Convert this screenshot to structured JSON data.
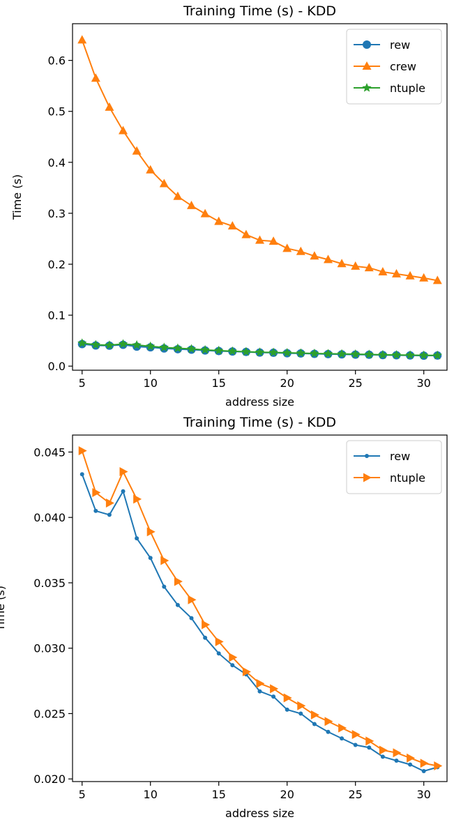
{
  "chart_data": [
    {
      "type": "line",
      "title": "Training Time (s) - KDD",
      "xlabel": "address size",
      "ylabel": "Time (s)",
      "xlim": [
        4.3,
        31.7
      ],
      "ylim": [
        -0.008,
        0.672
      ],
      "xticks": [
        5,
        10,
        15,
        20,
        25,
        30
      ],
      "yticks": [
        0.0,
        0.1,
        0.2,
        0.3,
        0.4,
        0.5,
        0.6
      ],
      "ytick_labels": [
        "0.0",
        "0.1",
        "0.2",
        "0.3",
        "0.4",
        "0.5",
        "0.6"
      ],
      "grid": false,
      "legend_position": "top-right",
      "x": [
        5,
        6,
        7,
        8,
        9,
        10,
        11,
        12,
        13,
        14,
        15,
        16,
        17,
        18,
        19,
        20,
        21,
        22,
        23,
        24,
        25,
        26,
        27,
        28,
        29,
        30,
        31
      ],
      "series": [
        {
          "name": "rew",
          "color": "#1f77b4",
          "marker": "circle",
          "values": [
            0.0433,
            0.0405,
            0.0402,
            0.042,
            0.0384,
            0.0369,
            0.0347,
            0.0333,
            0.0323,
            0.0308,
            0.0296,
            0.0287,
            0.028,
            0.0267,
            0.0263,
            0.0253,
            0.025,
            0.0242,
            0.0236,
            0.0231,
            0.0226,
            0.0224,
            0.0217,
            0.0214,
            0.0211,
            0.0206,
            0.0209
          ]
        },
        {
          "name": "crew",
          "color": "#ff7f0e",
          "marker": "triangle-up",
          "values": [
            0.64,
            0.565,
            0.508,
            0.462,
            0.422,
            0.385,
            0.358,
            0.333,
            0.315,
            0.299,
            0.284,
            0.275,
            0.258,
            0.247,
            0.245,
            0.231,
            0.225,
            0.216,
            0.209,
            0.201,
            0.196,
            0.193,
            0.185,
            0.181,
            0.177,
            0.173,
            0.168
          ]
        },
        {
          "name": "ntuple",
          "color": "#2ca02c",
          "marker": "star",
          "values": [
            0.0451,
            0.0419,
            0.0411,
            0.0435,
            0.0414,
            0.0389,
            0.0367,
            0.0351,
            0.0337,
            0.0318,
            0.0305,
            0.0293,
            0.0282,
            0.0273,
            0.0269,
            0.0262,
            0.0256,
            0.0249,
            0.0244,
            0.0239,
            0.0234,
            0.0229,
            0.0222,
            0.022,
            0.0216,
            0.0212,
            0.021
          ]
        }
      ]
    },
    {
      "type": "line",
      "title": "Training Time (s) - KDD",
      "xlabel": "address size",
      "ylabel": "Time (s)",
      "xlim": [
        4.3,
        31.7
      ],
      "ylim": [
        0.0198,
        0.0463
      ],
      "xticks": [
        5,
        10,
        15,
        20,
        25,
        30
      ],
      "yticks": [
        0.02,
        0.025,
        0.03,
        0.035,
        0.04,
        0.045
      ],
      "ytick_labels": [
        "0.020",
        "0.025",
        "0.030",
        "0.035",
        "0.040",
        "0.045"
      ],
      "grid": false,
      "legend_position": "top-right",
      "x": [
        5,
        6,
        7,
        8,
        9,
        10,
        11,
        12,
        13,
        14,
        15,
        16,
        17,
        18,
        19,
        20,
        21,
        22,
        23,
        24,
        25,
        26,
        27,
        28,
        29,
        30,
        31
      ],
      "series": [
        {
          "name": "rew",
          "color": "#1f77b4",
          "marker": "point",
          "values": [
            0.0433,
            0.0405,
            0.0402,
            0.042,
            0.0384,
            0.0369,
            0.0347,
            0.0333,
            0.0323,
            0.0308,
            0.0296,
            0.0287,
            0.028,
            0.0267,
            0.0263,
            0.0253,
            0.025,
            0.0242,
            0.0236,
            0.0231,
            0.0226,
            0.0224,
            0.0217,
            0.0214,
            0.0211,
            0.0206,
            0.0209
          ]
        },
        {
          "name": "ntuple",
          "color": "#ff7f0e",
          "marker": "triangle-right",
          "values": [
            0.0451,
            0.0419,
            0.0411,
            0.0435,
            0.0414,
            0.0389,
            0.0367,
            0.0351,
            0.0337,
            0.0318,
            0.0305,
            0.0293,
            0.0282,
            0.0273,
            0.0269,
            0.0262,
            0.0256,
            0.0249,
            0.0244,
            0.0239,
            0.0234,
            0.0229,
            0.0222,
            0.022,
            0.0216,
            0.0212,
            0.021
          ]
        }
      ]
    }
  ]
}
